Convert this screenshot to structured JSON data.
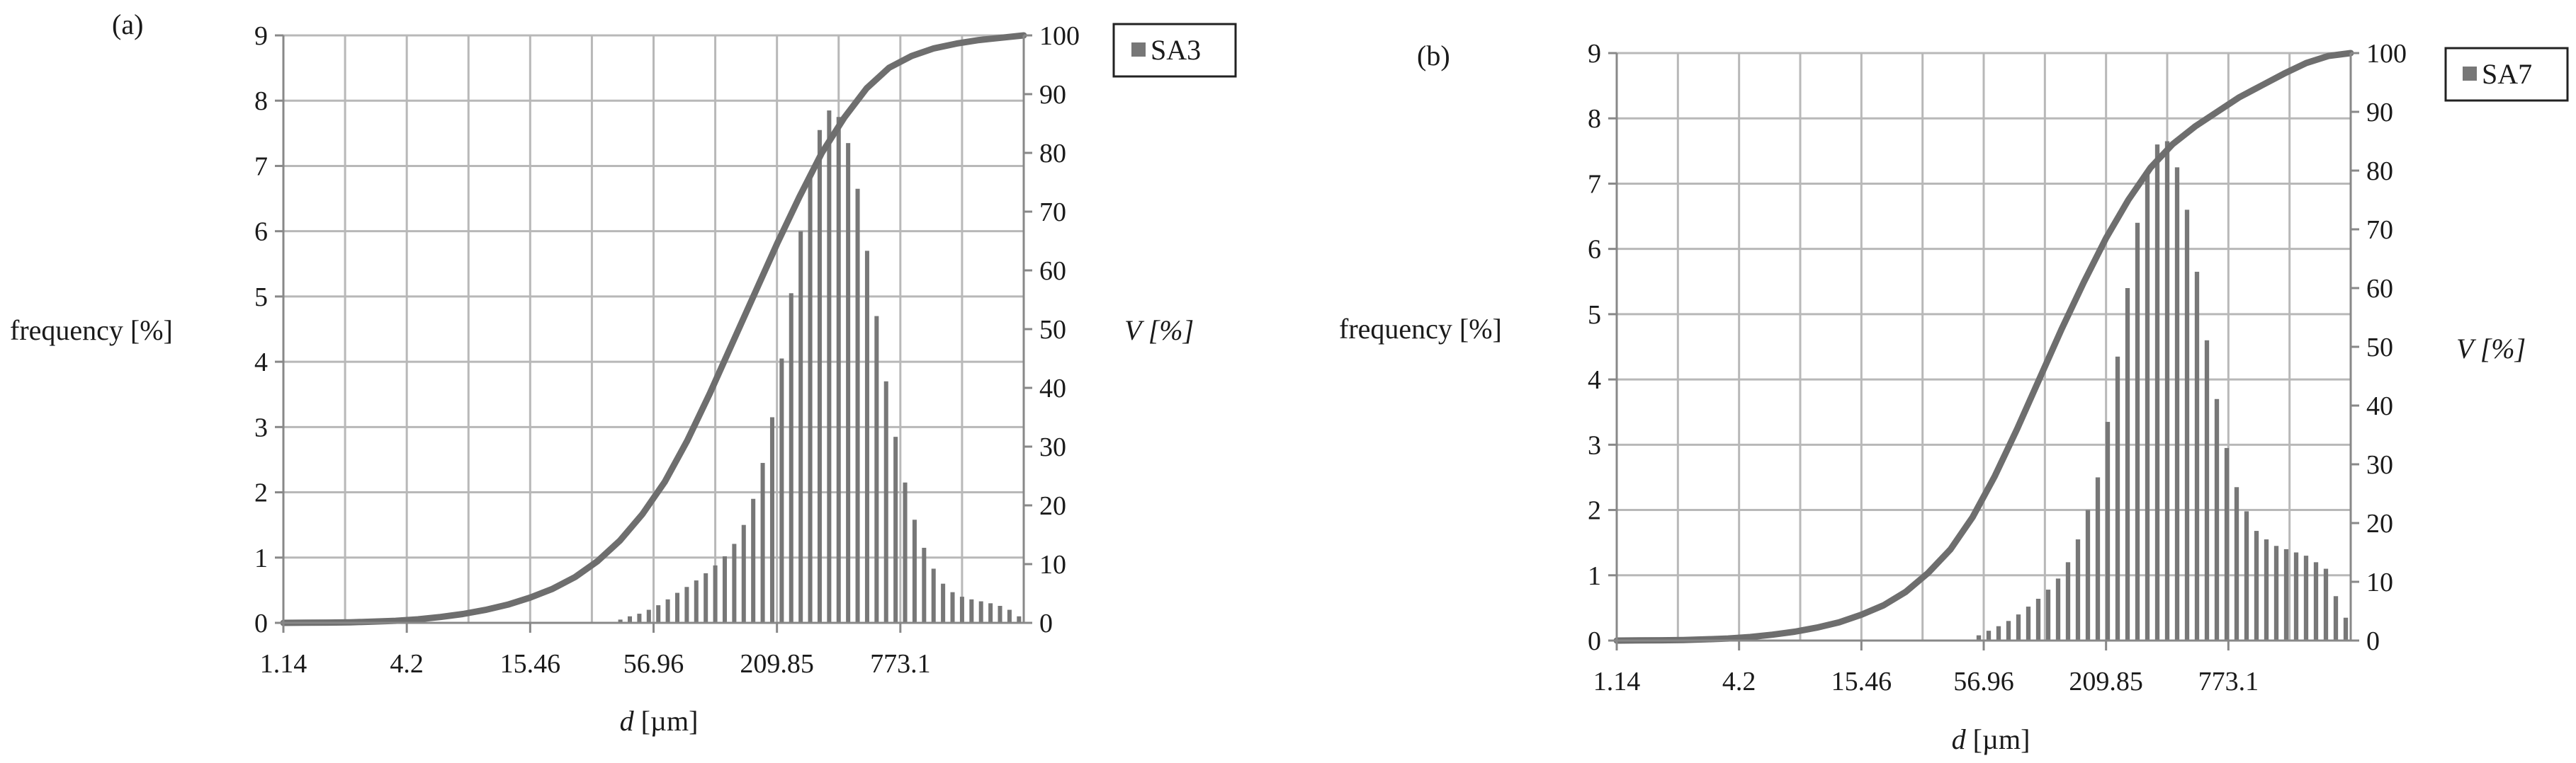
{
  "chart_data": [
    {
      "type": "bar",
      "panel_label": "(a)",
      "ylabel": "frequency [%]",
      "y2label": "V [%]",
      "xlabel_italic": "d",
      "xlabel_unit": " [µm]",
      "ylim": [
        0,
        9
      ],
      "y2lim": [
        0,
        100
      ],
      "y_ticks": [
        "0",
        "1",
        "2",
        "3",
        "4",
        "5",
        "6",
        "7",
        "8",
        "9"
      ],
      "y2_ticks": [
        "0",
        "10",
        "20",
        "30",
        "40",
        "50",
        "60",
        "70",
        "80",
        "90",
        "100"
      ],
      "x_tick_labels": [
        "1.14",
        "4.2",
        "15.46",
        "56.96",
        "209.85",
        "773.1"
      ],
      "legend": "SA3",
      "legend_position": "top-right",
      "grid": true,
      "bar_color": "#777777",
      "line_color": "#6e6e6e",
      "series": [
        {
          "type": "bar",
          "values": [
            0,
            0,
            0,
            0,
            0,
            0,
            0,
            0,
            0,
            0,
            0,
            0,
            0,
            0,
            0,
            0,
            0,
            0,
            0,
            0,
            0,
            0,
            0,
            0,
            0,
            0,
            0,
            0,
            0,
            0,
            0,
            0,
            0,
            0,
            0,
            0.05,
            0.1,
            0.14,
            0.2,
            0.27,
            0.36,
            0.46,
            0.55,
            0.65,
            0.76,
            0.88,
            1.02,
            1.21,
            1.5,
            1.9,
            2.45,
            3.15,
            4.05,
            5.05,
            6.0,
            6.85,
            7.55,
            7.85,
            7.75,
            7.35,
            6.65,
            5.7,
            4.7,
            3.7,
            2.85,
            2.15,
            1.58,
            1.15,
            0.83,
            0.6,
            0.47,
            0.4,
            0.36,
            0.33,
            0.3,
            0.26,
            0.2,
            0.1
          ]
        },
        {
          "type": "line",
          "axis": "secondary",
          "values": [
            0,
            0.02,
            0.05,
            0.1,
            0.2,
            0.35,
            0.6,
            1,
            1.5,
            2.2,
            3.1,
            4.3,
            5.8,
            7.8,
            10.5,
            14,
            18.5,
            24,
            31,
            39,
            47.5,
            56,
            64.5,
            72.5,
            80,
            86,
            91,
            94.5,
            96.5,
            97.8,
            98.6,
            99.2,
            99.6,
            100
          ]
        }
      ]
    },
    {
      "type": "bar",
      "panel_label": "(b)",
      "ylabel": "frequency [%]",
      "y2label": "V [%]",
      "xlabel_italic": "d",
      "xlabel_unit": " [µm]",
      "ylim": [
        0,
        9
      ],
      "y2lim": [
        0,
        100
      ],
      "y_ticks": [
        "0",
        "1",
        "2",
        "3",
        "4",
        "5",
        "6",
        "7",
        "8",
        "9"
      ],
      "y2_ticks": [
        "0",
        "10",
        "20",
        "30",
        "40",
        "50",
        "60",
        "70",
        "80",
        "90",
        "100"
      ],
      "x_tick_labels": [
        "1.14",
        "4.2",
        "15.46",
        "56.96",
        "209.85",
        "773.1"
      ],
      "legend": "SA7",
      "legend_position": "top-right",
      "grid": true,
      "bar_color": "#777777",
      "line_color": "#6e6e6e",
      "series": [
        {
          "type": "bar",
          "values": [
            0,
            0,
            0,
            0,
            0,
            0,
            0,
            0,
            0,
            0,
            0,
            0,
            0,
            0,
            0,
            0,
            0,
            0,
            0,
            0,
            0,
            0,
            0,
            0,
            0,
            0,
            0,
            0,
            0,
            0,
            0,
            0,
            0,
            0,
            0,
            0,
            0.08,
            0.15,
            0.22,
            0.3,
            0.4,
            0.52,
            0.64,
            0.78,
            0.95,
            1.2,
            1.55,
            2.0,
            2.5,
            3.35,
            4.35,
            5.4,
            6.4,
            7.2,
            7.6,
            7.65,
            7.25,
            6.6,
            5.65,
            4.6,
            3.7,
            2.95,
            2.35,
            1.98,
            1.68,
            1.55,
            1.45,
            1.4,
            1.35,
            1.3,
            1.2,
            1.1,
            0.68,
            0.35
          ]
        },
        {
          "type": "line",
          "axis": "secondary",
          "values": [
            0,
            0.02,
            0.05,
            0.1,
            0.2,
            0.35,
            0.6,
            1,
            1.5,
            2.2,
            3.1,
            4.4,
            6,
            8.3,
            11.5,
            15.5,
            21,
            28,
            36,
            44.5,
            53,
            61,
            68.5,
            75,
            80.5,
            84.5,
            87.5,
            90,
            92.5,
            94.5,
            96.5,
            98.3,
            99.5,
            100
          ]
        }
      ]
    }
  ]
}
